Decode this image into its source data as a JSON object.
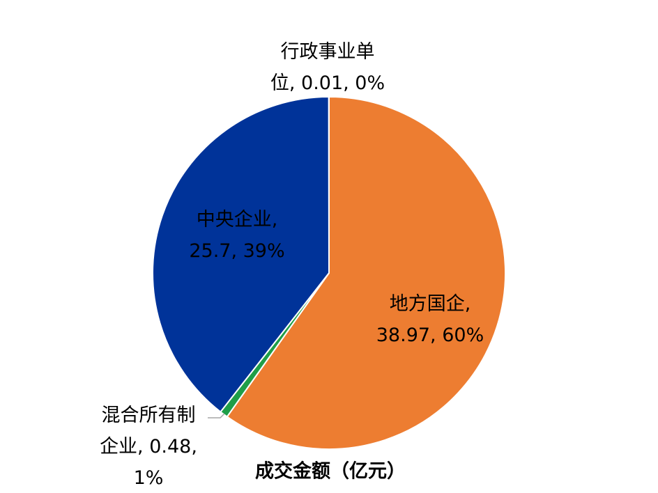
{
  "chart_data": {
    "type": "pie",
    "title": "成交金额（亿元）",
    "values": [
      38.97,
      0.48,
      25.7,
      0.01
    ],
    "data_labels": [
      [
        "地方国企,",
        "38.97, 60%"
      ],
      [
        "混合所有制",
        "企业, 0.48,",
        "1%"
      ],
      [
        "中央企业,",
        "25.7, 39%"
      ],
      [
        "行政事业单",
        "位, 0.01, 0%"
      ]
    ],
    "colors": [
      "#ED7D31",
      "#1E9E48",
      "#003399",
      "#A5A5A5"
    ]
  }
}
